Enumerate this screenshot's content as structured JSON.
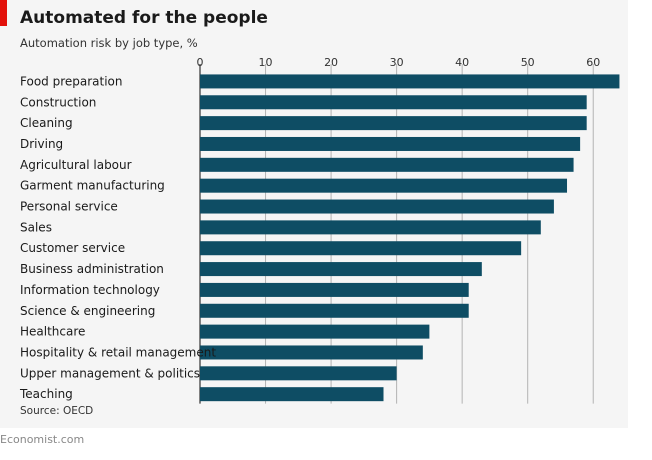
{
  "chart_data": {
    "type": "bar",
    "orientation": "horizontal",
    "title": "Automated for the people",
    "subtitle": "Automation risk by job type, %",
    "source": "Source: OECD",
    "categories": [
      "Food preparation",
      "Construction",
      "Cleaning",
      "Driving",
      "Agricultural labour",
      "Garment manufacturing",
      "Personal service",
      "Sales",
      "Customer service",
      "Business administration",
      "Information technology",
      "Science & engineering",
      "Healthcare",
      "Hospitality & retail management",
      "Upper management & politics",
      "Teaching"
    ],
    "values": [
      64,
      59,
      59,
      58,
      57,
      56,
      54,
      52,
      49,
      43,
      41,
      41,
      35,
      34,
      30,
      28
    ],
    "xlim": [
      0,
      65
    ],
    "ticks": [
      0,
      10,
      20,
      30,
      40,
      50,
      60
    ],
    "tick_labels": [
      "0",
      "10",
      "20",
      "30",
      "40",
      "50",
      "60"
    ],
    "xaxis_position": "top",
    "grid": true,
    "bar_color": "#0e4d64",
    "grid_color": "#b3b3b3",
    "accent_color": "#e3120b"
  },
  "footer": {
    "text": "Economist.com"
  }
}
